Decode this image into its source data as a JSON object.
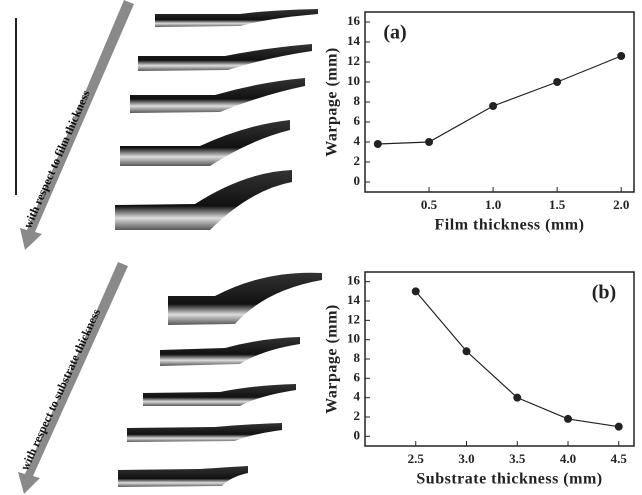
{
  "arrows": [
    "with respect to film thickness",
    "with respect to substrate thickness"
  ],
  "chart_data": [
    {
      "type": "line",
      "panel_label": "(a)",
      "x_label": "Film thickness (mm)",
      "y_label": "Warpage (mm)",
      "x": [
        0.1,
        0.5,
        1.0,
        1.5,
        2.0
      ],
      "series": [
        {
          "color": "#222222",
          "values": [
            3.8,
            4.0,
            7.6,
            10.0,
            12.6
          ]
        }
      ],
      "xlim": [
        0.0,
        2.1
      ],
      "xticks": [
        {
          "value": 0.5,
          "label": "0.5"
        },
        {
          "value": 1.0,
          "label": "1.0"
        },
        {
          "value": 1.5,
          "label": "1.5"
        },
        {
          "value": 2.0,
          "label": "2.0"
        }
      ],
      "ylim": [
        -1,
        17
      ],
      "yticks": [
        0,
        2,
        4,
        6,
        8,
        10,
        12,
        14,
        16
      ]
    },
    {
      "type": "line",
      "panel_label": "(b)",
      "x_label": "Substrate thickness (mm)",
      "y_label": "Warpage (mm)",
      "x": [
        2.5,
        3.0,
        3.5,
        4.0,
        4.5
      ],
      "series": [
        {
          "color": "#222222",
          "values": [
            15.0,
            8.8,
            4.0,
            1.8,
            1.0
          ]
        }
      ],
      "xlim": [
        2.0,
        4.65
      ],
      "xticks": [
        {
          "value": 2.5,
          "label": "2.5"
        },
        {
          "value": 3.0,
          "label": "3.0"
        },
        {
          "value": 3.5,
          "label": "3.5"
        },
        {
          "value": 4.0,
          "label": "4.0"
        },
        {
          "value": 4.5,
          "label": "4.5"
        }
      ],
      "ylim": [
        -1,
        17
      ],
      "yticks": [
        0,
        2,
        4,
        6,
        8,
        10,
        12,
        14,
        16
      ]
    }
  ]
}
